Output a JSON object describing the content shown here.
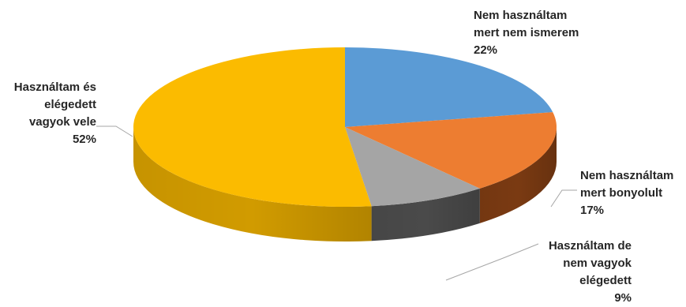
{
  "chart_data": {
    "type": "pie",
    "style": "3d",
    "slices": [
      {
        "label": [
          "Nem használtam",
          "mert nem ismerem"
        ],
        "pct_label": "22%",
        "value": 22,
        "color": "#5b9bd5",
        "side_color": "#3a6f9f"
      },
      {
        "label": [
          "Nem használtam",
          "mert bonyolult"
        ],
        "pct_label": "17%",
        "value": 17,
        "color": "#ed7d31",
        "side_color": "#7a3a12"
      },
      {
        "label": [
          "Használtam de",
          "nem vagyok",
          "elégedett"
        ],
        "pct_label": "9%",
        "value": 9,
        "color": "#a5a5a5",
        "side_color": "#4a4a4a"
      },
      {
        "label": [
          "Használtam és",
          "elégedett",
          "vagyok vele"
        ],
        "pct_label": "52%",
        "value": 52,
        "color": "#fbbb00",
        "side_color": "#d19b00"
      }
    ]
  }
}
